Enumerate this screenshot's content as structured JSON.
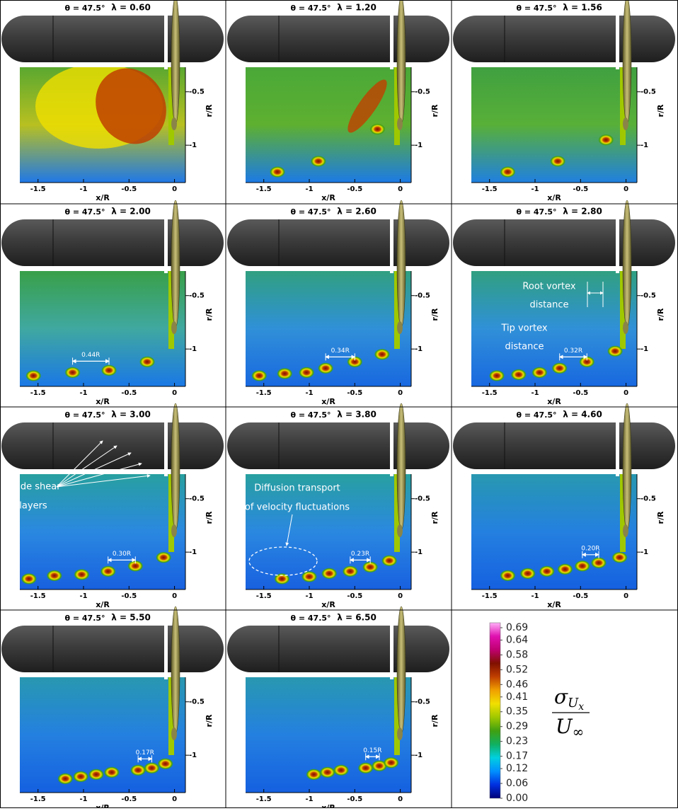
{
  "chart_data": [
    {
      "type": "contour",
      "title": "θ = 47.5°",
      "subtitle": "λ = 0.60",
      "xlabel": "x/R",
      "ylabel": "r/R",
      "xlim": [
        -1.7,
        0.12
      ],
      "ylim": [
        -1.35,
        -0.27
      ],
      "xticks": [
        -1.5,
        -1,
        -0.5,
        0
      ],
      "yticks": [
        -0.5,
        -1
      ]
    },
    {
      "type": "contour",
      "title": "θ = 47.5°",
      "subtitle": "λ = 1.20",
      "xlabel": "x/R",
      "ylabel": "r/R",
      "xlim": [
        -1.7,
        0.12
      ],
      "ylim": [
        -1.35,
        -0.27
      ],
      "xticks": [
        -1.5,
        -1,
        -0.5,
        0
      ],
      "yticks": [
        -0.5,
        -1
      ],
      "cores": {
        "x": [
          -1.35,
          -0.9,
          -0.25
        ],
        "r": [
          -1.25,
          -1.15,
          -0.85
        ]
      }
    },
    {
      "type": "contour",
      "title": "θ = 47.5°",
      "subtitle": "λ = 1.56",
      "xlabel": "x/R",
      "ylabel": "r/R",
      "xlim": [
        -1.7,
        0.12
      ],
      "ylim": [
        -1.35,
        -0.27
      ],
      "xticks": [
        -1.5,
        -1,
        -0.5,
        0
      ],
      "yticks": [
        -0.5,
        -1
      ],
      "cores": {
        "x": [
          -1.3,
          -0.75,
          -0.22
        ],
        "r": [
          -1.25,
          -1.15,
          -0.95
        ]
      }
    },
    {
      "type": "contour",
      "title": "θ = 47.5°",
      "subtitle": "λ = 2.00",
      "xlabel": "x/R",
      "ylabel": "r/R",
      "xlim": [
        -1.7,
        0.12
      ],
      "ylim": [
        -1.35,
        -0.27
      ],
      "xticks": [
        -1.5,
        -1,
        -0.5,
        0
      ],
      "yticks": [
        -0.5,
        -1
      ],
      "cores": {
        "x": [
          -1.55,
          -1.12,
          -0.72,
          -0.3
        ],
        "r": [
          -1.25,
          -1.22,
          -1.2,
          -1.12
        ]
      },
      "spacing": "0.44R"
    },
    {
      "type": "contour",
      "title": "θ = 47.5°",
      "subtitle": "λ = 2.60",
      "xlabel": "x/R",
      "ylabel": "r/R",
      "xlim": [
        -1.7,
        0.12
      ],
      "ylim": [
        -1.35,
        -0.27
      ],
      "xticks": [
        -1.5,
        -1,
        -0.5,
        0
      ],
      "yticks": [
        -0.5,
        -1
      ],
      "cores": {
        "x": [
          -1.55,
          -1.27,
          -1.03,
          -0.82,
          -0.5,
          -0.2
        ],
        "r": [
          -1.25,
          -1.23,
          -1.22,
          -1.18,
          -1.12,
          -1.05
        ]
      },
      "spacing": "0.34R"
    },
    {
      "type": "contour",
      "title": "θ = 47.5°",
      "subtitle": "λ = 2.80",
      "xlabel": "x/R",
      "ylabel": "r/R",
      "xlim": [
        -1.7,
        0.12
      ],
      "ylim": [
        -1.35,
        -0.27
      ],
      "xticks": [
        -1.5,
        -1,
        -0.5,
        0
      ],
      "yticks": [
        -0.5,
        -1
      ],
      "cores": {
        "x": [
          -1.42,
          -1.18,
          -0.95,
          -0.73,
          -0.43,
          -0.12
        ],
        "r": [
          -1.25,
          -1.24,
          -1.22,
          -1.18,
          -1.12,
          -1.02
        ]
      },
      "spacing": "0.32R",
      "annotations": [
        "Root vortex",
        "distance",
        "Tip vortex",
        "distance"
      ]
    },
    {
      "type": "contour",
      "title": "θ = 47.5°",
      "subtitle": "λ = 3.00",
      "xlabel": "x/R",
      "ylabel": "r/R",
      "xlim": [
        -1.7,
        0.12
      ],
      "ylim": [
        -1.35,
        -0.27
      ],
      "xticks": [
        -1.5,
        -1,
        -0.5,
        0
      ],
      "yticks": [
        -0.5,
        -1
      ],
      "cores": {
        "x": [
          -1.6,
          -1.32,
          -1.02,
          -0.73,
          -0.43,
          -0.12
        ],
        "r": [
          -1.25,
          -1.22,
          -1.21,
          -1.18,
          -1.13,
          -1.05
        ]
      },
      "spacing": "0.30R",
      "annotations": [
        "Blade shear",
        "layers"
      ]
    },
    {
      "type": "contour",
      "title": "θ = 47.5°",
      "subtitle": "λ = 3.80",
      "xlabel": "x/R",
      "ylabel": "r/R",
      "xlim": [
        -1.7,
        0.12
      ],
      "ylim": [
        -1.35,
        -0.27
      ],
      "xticks": [
        -1.5,
        -1,
        -0.5,
        0
      ],
      "yticks": [
        -0.5,
        -1
      ],
      "cores": {
        "x": [
          -1.3,
          -1.0,
          -0.78,
          -0.55,
          -0.33,
          -0.12
        ],
        "r": [
          -1.25,
          -1.23,
          -1.2,
          -1.18,
          -1.14,
          -1.08
        ]
      },
      "spacing": "0.23R",
      "annotations": [
        "Diffusion transport",
        "of velocity fluctuations"
      ]
    },
    {
      "type": "contour",
      "title": "θ = 47.5°",
      "subtitle": "λ = 4.60",
      "xlabel": "x/R",
      "ylabel": "r/R",
      "xlim": [
        -1.7,
        0.12
      ],
      "ylim": [
        -1.35,
        -0.27
      ],
      "xticks": [
        -1.5,
        -1,
        -0.5,
        0
      ],
      "yticks": [
        -0.5,
        -1
      ],
      "cores": {
        "x": [
          -1.3,
          -1.08,
          -0.87,
          -0.67,
          -0.48,
          -0.3,
          -0.07
        ],
        "r": [
          -1.22,
          -1.2,
          -1.18,
          -1.16,
          -1.13,
          -1.1,
          -1.05
        ]
      },
      "spacing": "0.20R"
    },
    {
      "type": "contour",
      "title": "θ = 47.5°",
      "subtitle": "λ = 5.50",
      "xlabel": "x/R",
      "ylabel": "r/R",
      "xlim": [
        -1.7,
        0.12
      ],
      "ylim": [
        -1.35,
        -0.27
      ],
      "xticks": [
        -1.5,
        -1,
        -0.5,
        0
      ],
      "yticks": [
        -0.5,
        -1
      ],
      "cores": {
        "x": [
          -1.2,
          -1.03,
          -0.86,
          -0.69,
          -0.4,
          -0.25,
          -0.1
        ],
        "r": [
          -1.22,
          -1.2,
          -1.18,
          -1.16,
          -1.14,
          -1.12,
          -1.08
        ]
      },
      "spacing": "0.17R"
    },
    {
      "type": "contour",
      "title": "θ = 47.5°",
      "subtitle": "λ = 6.50",
      "xlabel": "x/R",
      "ylabel": "r/R",
      "xlim": [
        -1.7,
        0.12
      ],
      "ylim": [
        -1.35,
        -0.27
      ],
      "xticks": [
        -1.5,
        -1,
        -0.5,
        0
      ],
      "yticks": [
        -0.5,
        -1
      ],
      "cores": {
        "x": [
          -0.95,
          -0.8,
          -0.65,
          -0.38,
          -0.23,
          -0.1
        ],
        "r": [
          -1.18,
          -1.16,
          -1.14,
          -1.12,
          -1.1,
          -1.07
        ]
      },
      "spacing": "0.15R"
    },
    {
      "type": "colorbar",
      "ylim": [
        0,
        0.71
      ],
      "yticks": [
        0.69,
        0.64,
        0.58,
        0.52,
        0.46,
        0.41,
        0.35,
        0.29,
        0.23,
        0.17,
        0.12,
        0.06,
        {
          "value": 0,
          "label": "0.00"
        }
      ],
      "colors": [
        "#00007a",
        "#0030e0",
        "#0090ff",
        "#00d0e0",
        "#10b060",
        "#40a010",
        "#a0c800",
        "#f0e000",
        "#f0a000",
        "#c04000",
        "#801000",
        "#c00070",
        "#e010b0",
        "#ffb0f8"
      ],
      "label": {
        "numerator": "σ",
        "numerator_sub": "U",
        "numerator_subsub": "x",
        "denominator": "U",
        "denominator_sub": "∞"
      }
    }
  ]
}
